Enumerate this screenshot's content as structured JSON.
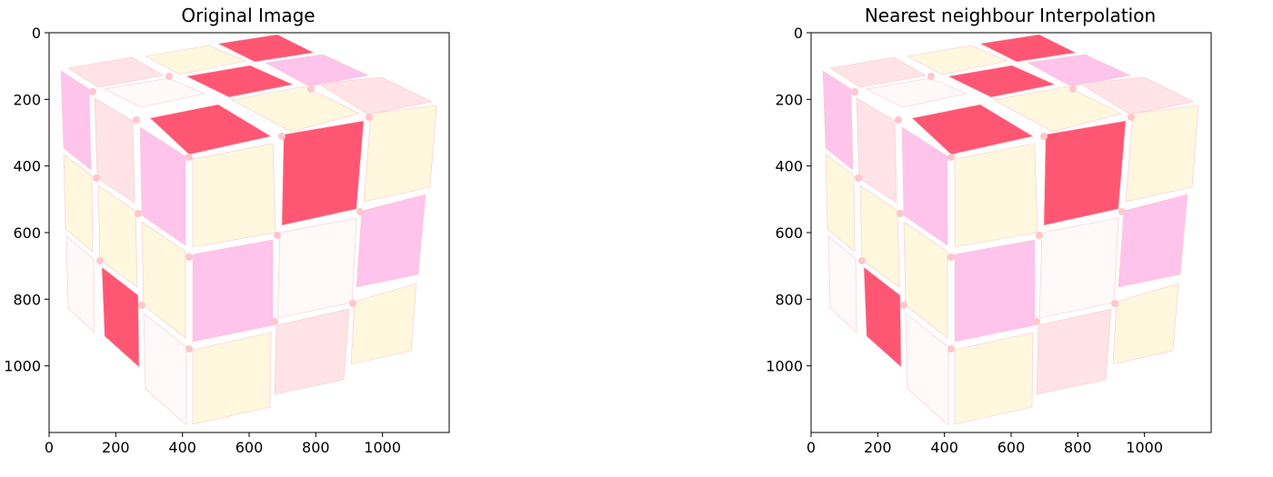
{
  "chart_data": [
    {
      "type": "image",
      "title": "Original Image",
      "xlim": [
        0,
        1200
      ],
      "ylim": [
        1200,
        0
      ],
      "x_ticks": [
        0,
        200,
        400,
        600,
        800,
        1000
      ],
      "y_ticks": [
        0,
        200,
        400,
        600,
        800,
        1000
      ],
      "x_tick_labels": [
        "0",
        "200",
        "400",
        "600",
        "800",
        "1000"
      ],
      "y_tick_labels": [
        "0",
        "200",
        "400",
        "600",
        "800",
        "1000"
      ]
    },
    {
      "type": "image",
      "title": "Nearest neighbour Interpolation",
      "xlim": [
        0,
        1200
      ],
      "ylim": [
        1200,
        0
      ],
      "x_ticks": [
        0,
        200,
        400,
        600,
        800,
        1000
      ],
      "y_ticks": [
        0,
        200,
        400,
        600,
        800,
        1000
      ],
      "x_tick_labels": [
        "0",
        "200",
        "400",
        "600",
        "800",
        "1000"
      ],
      "y_tick_labels": [
        "0",
        "200",
        "400",
        "600",
        "800",
        "1000"
      ]
    }
  ],
  "colors": {
    "red": "#FF5773",
    "pink": "#FEC4EB",
    "blush": "#FFE3E6",
    "cream": "#FFF7DE",
    "white": "#FFF9FA",
    "dot": "#FFC6CB",
    "tile_stroke": "#F7C9CF"
  }
}
